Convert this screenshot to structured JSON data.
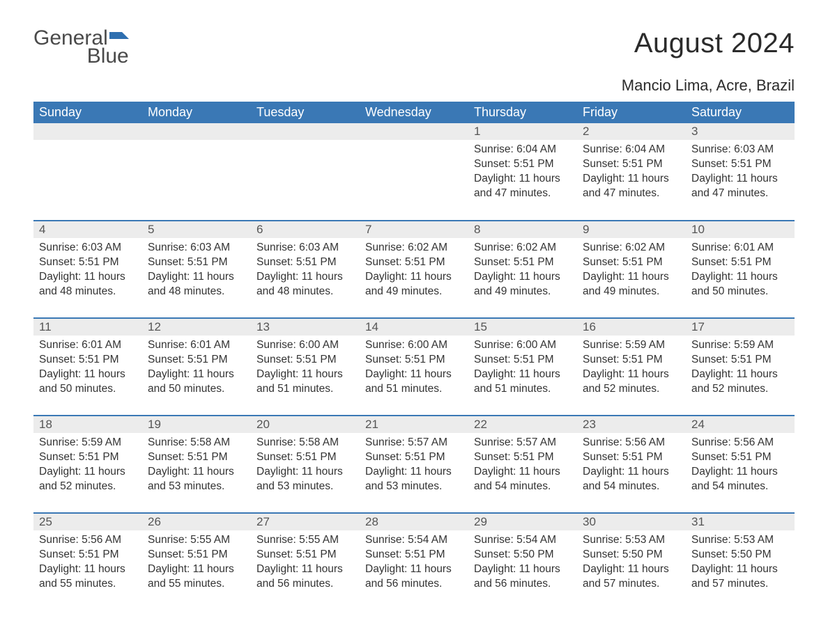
{
  "logo": {
    "word1": "General",
    "word2": "Blue"
  },
  "title": "August 2024",
  "location": "Mancio Lima, Acre, Brazil",
  "colors": {
    "header_bg": "#3a78b5",
    "header_text": "#ffffff",
    "daynum_bg": "#ececec",
    "row_border": "#3a78b5",
    "body_text": "#333333",
    "logo_gray": "#4a4a4a",
    "logo_blue": "#2e6fb0"
  },
  "days_of_week": [
    "Sunday",
    "Monday",
    "Tuesday",
    "Wednesday",
    "Thursday",
    "Friday",
    "Saturday"
  ],
  "weeks": [
    [
      null,
      null,
      null,
      null,
      {
        "n": "1",
        "sunrise": "6:04 AM",
        "sunset": "5:51 PM",
        "daylight": "11 hours and 47 minutes."
      },
      {
        "n": "2",
        "sunrise": "6:04 AM",
        "sunset": "5:51 PM",
        "daylight": "11 hours and 47 minutes."
      },
      {
        "n": "3",
        "sunrise": "6:03 AM",
        "sunset": "5:51 PM",
        "daylight": "11 hours and 47 minutes."
      }
    ],
    [
      {
        "n": "4",
        "sunrise": "6:03 AM",
        "sunset": "5:51 PM",
        "daylight": "11 hours and 48 minutes."
      },
      {
        "n": "5",
        "sunrise": "6:03 AM",
        "sunset": "5:51 PM",
        "daylight": "11 hours and 48 minutes."
      },
      {
        "n": "6",
        "sunrise": "6:03 AM",
        "sunset": "5:51 PM",
        "daylight": "11 hours and 48 minutes."
      },
      {
        "n": "7",
        "sunrise": "6:02 AM",
        "sunset": "5:51 PM",
        "daylight": "11 hours and 49 minutes."
      },
      {
        "n": "8",
        "sunrise": "6:02 AM",
        "sunset": "5:51 PM",
        "daylight": "11 hours and 49 minutes."
      },
      {
        "n": "9",
        "sunrise": "6:02 AM",
        "sunset": "5:51 PM",
        "daylight": "11 hours and 49 minutes."
      },
      {
        "n": "10",
        "sunrise": "6:01 AM",
        "sunset": "5:51 PM",
        "daylight": "11 hours and 50 minutes."
      }
    ],
    [
      {
        "n": "11",
        "sunrise": "6:01 AM",
        "sunset": "5:51 PM",
        "daylight": "11 hours and 50 minutes."
      },
      {
        "n": "12",
        "sunrise": "6:01 AM",
        "sunset": "5:51 PM",
        "daylight": "11 hours and 50 minutes."
      },
      {
        "n": "13",
        "sunrise": "6:00 AM",
        "sunset": "5:51 PM",
        "daylight": "11 hours and 51 minutes."
      },
      {
        "n": "14",
        "sunrise": "6:00 AM",
        "sunset": "5:51 PM",
        "daylight": "11 hours and 51 minutes."
      },
      {
        "n": "15",
        "sunrise": "6:00 AM",
        "sunset": "5:51 PM",
        "daylight": "11 hours and 51 minutes."
      },
      {
        "n": "16",
        "sunrise": "5:59 AM",
        "sunset": "5:51 PM",
        "daylight": "11 hours and 52 minutes."
      },
      {
        "n": "17",
        "sunrise": "5:59 AM",
        "sunset": "5:51 PM",
        "daylight": "11 hours and 52 minutes."
      }
    ],
    [
      {
        "n": "18",
        "sunrise": "5:59 AM",
        "sunset": "5:51 PM",
        "daylight": "11 hours and 52 minutes."
      },
      {
        "n": "19",
        "sunrise": "5:58 AM",
        "sunset": "5:51 PM",
        "daylight": "11 hours and 53 minutes."
      },
      {
        "n": "20",
        "sunrise": "5:58 AM",
        "sunset": "5:51 PM",
        "daylight": "11 hours and 53 minutes."
      },
      {
        "n": "21",
        "sunrise": "5:57 AM",
        "sunset": "5:51 PM",
        "daylight": "11 hours and 53 minutes."
      },
      {
        "n": "22",
        "sunrise": "5:57 AM",
        "sunset": "5:51 PM",
        "daylight": "11 hours and 54 minutes."
      },
      {
        "n": "23",
        "sunrise": "5:56 AM",
        "sunset": "5:51 PM",
        "daylight": "11 hours and 54 minutes."
      },
      {
        "n": "24",
        "sunrise": "5:56 AM",
        "sunset": "5:51 PM",
        "daylight": "11 hours and 54 minutes."
      }
    ],
    [
      {
        "n": "25",
        "sunrise": "5:56 AM",
        "sunset": "5:51 PM",
        "daylight": "11 hours and 55 minutes."
      },
      {
        "n": "26",
        "sunrise": "5:55 AM",
        "sunset": "5:51 PM",
        "daylight": "11 hours and 55 minutes."
      },
      {
        "n": "27",
        "sunrise": "5:55 AM",
        "sunset": "5:51 PM",
        "daylight": "11 hours and 56 minutes."
      },
      {
        "n": "28",
        "sunrise": "5:54 AM",
        "sunset": "5:51 PM",
        "daylight": "11 hours and 56 minutes."
      },
      {
        "n": "29",
        "sunrise": "5:54 AM",
        "sunset": "5:50 PM",
        "daylight": "11 hours and 56 minutes."
      },
      {
        "n": "30",
        "sunrise": "5:53 AM",
        "sunset": "5:50 PM",
        "daylight": "11 hours and 57 minutes."
      },
      {
        "n": "31",
        "sunrise": "5:53 AM",
        "sunset": "5:50 PM",
        "daylight": "11 hours and 57 minutes."
      }
    ]
  ],
  "labels": {
    "sunrise": "Sunrise: ",
    "sunset": "Sunset: ",
    "daylight": "Daylight: "
  }
}
